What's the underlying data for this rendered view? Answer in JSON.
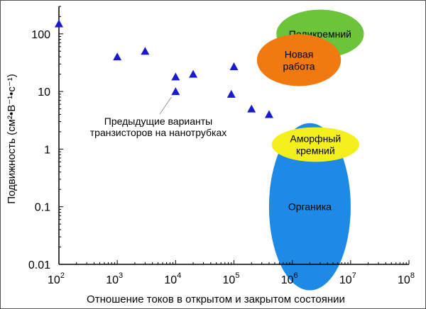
{
  "chart_data": {
    "type": "scatter",
    "title": "",
    "xlabel": "Отношение токов в открытом и закрытом состоянии",
    "ylabel": "Подвижность (см²•В⁻¹•с⁻¹)",
    "x_scale": "log",
    "y_scale": "log",
    "xlim": [
      100,
      100000000
    ],
    "ylim": [
      0.01,
      300
    ],
    "x_ticks": [
      {
        "value": 100,
        "base": "10",
        "exp": "2"
      },
      {
        "value": 1000,
        "base": "10",
        "exp": "3"
      },
      {
        "value": 10000,
        "base": "10",
        "exp": "4"
      },
      {
        "value": 100000,
        "base": "10",
        "exp": "5"
      },
      {
        "value": 1000000,
        "base": "10",
        "exp": "6"
      },
      {
        "value": 10000000,
        "base": "10",
        "exp": "7"
      },
      {
        "value": 100000000,
        "base": "10",
        "exp": "8"
      }
    ],
    "y_ticks": [
      {
        "value": 100,
        "label": "100"
      },
      {
        "value": 10,
        "label": "10"
      },
      {
        "value": 1,
        "label": "1"
      },
      {
        "value": 0.1,
        "label": "0.1"
      },
      {
        "value": 0.01,
        "label": "0.01"
      }
    ],
    "grid": false,
    "series": [
      {
        "marker": "triangle",
        "color": "#1a1acc",
        "points": [
          {
            "x": 100,
            "y": 150
          },
          {
            "x": 1000,
            "y": 40
          },
          {
            "x": 3000,
            "y": 50
          },
          {
            "x": 10000,
            "y": 18
          },
          {
            "x": 10000,
            "y": 10
          },
          {
            "x": 20000,
            "y": 20
          },
          {
            "x": 90000,
            "y": 9
          },
          {
            "x": 100000,
            "y": 27
          },
          {
            "x": 200000,
            "y": 5
          },
          {
            "x": 400000,
            "y": 4
          }
        ]
      }
    ],
    "regions": [
      {
        "label": [
          "Поликремний"
        ],
        "color": "#6cc43a",
        "text_color": "#000000",
        "cx": 3000000,
        "cy": 100,
        "rx_decades": 0.75,
        "ry_decades": 0.42
      },
      {
        "label": [
          "Органика"
        ],
        "color": "#1e8ae6",
        "text_color": "#000000",
        "cx": 2000000,
        "cy": 0.1,
        "rx_decades": 0.7,
        "ry_decades": 1.45
      },
      {
        "label": [
          "Аморфный",
          "кремний"
        ],
        "color": "#f2ef1c",
        "text_color": "#000000",
        "cx": 2500000,
        "cy": 1.2,
        "rx_decades": 0.75,
        "ry_decades": 0.3
      },
      {
        "label": [
          "Новая",
          "работа"
        ],
        "color": "#f07a10",
        "text_color": "#000000",
        "cx": 1300000,
        "cy": 35,
        "rx_decades": 0.72,
        "ry_decades": 0.45
      }
    ],
    "annotation": {
      "lines": [
        "Предыдущие варианты",
        "транзисторов на нанотрубках"
      ],
      "line_to": {
        "x": 10000,
        "y": 10
      }
    }
  }
}
